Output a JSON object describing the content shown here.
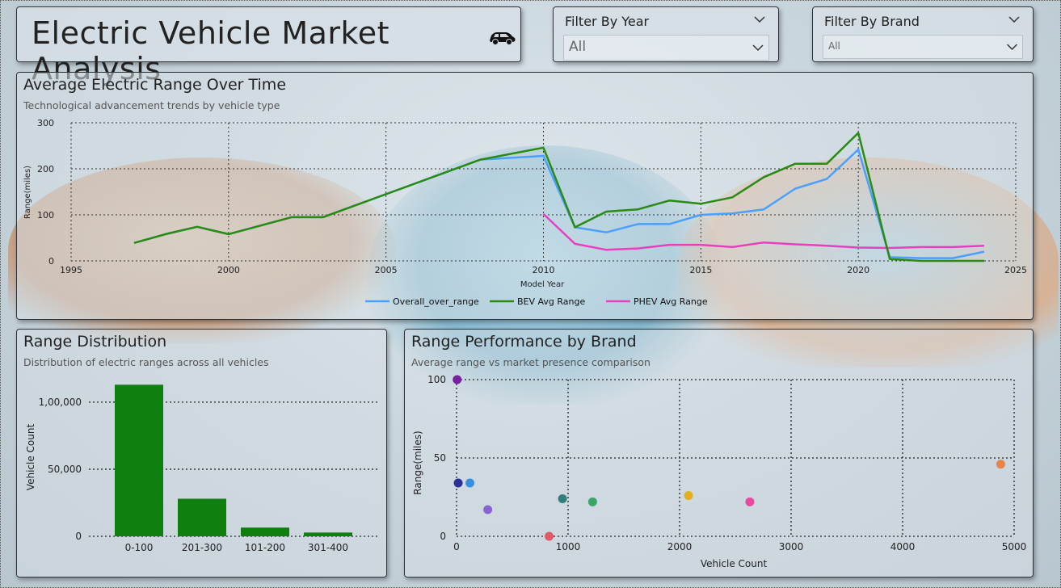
{
  "header": {
    "title": "Electric Vehicle Market Analysis",
    "icon": "car-icon"
  },
  "filters": {
    "year": {
      "label": "Filter By Year",
      "value": "All"
    },
    "brand": {
      "label": "Filter By Brand",
      "value": "All"
    }
  },
  "range_over_time": {
    "title": "Average Electric Range Over Time",
    "subtitle": "Technological advancement trends by vehicle type"
  },
  "range_distribution": {
    "title": "Range Distribution",
    "subtitle": "Distribution of electric ranges across all vehicles"
  },
  "brand_performance": {
    "title": "Range Performance by Brand",
    "subtitle": "Average range vs market presence comparison"
  },
  "colors": {
    "overall": "#4a9fff",
    "bev": "#2b8a12",
    "phev": "#e83fbf",
    "bar": "#0f7f0f"
  },
  "chart_data": [
    {
      "type": "line",
      "title": "Average Electric Range Over Time",
      "xlabel": "Model Year",
      "ylabel": "Range(miles)",
      "xlim": [
        1995,
        2025
      ],
      "ylim": [
        0,
        300
      ],
      "xticks": [
        1995,
        2000,
        2005,
        2010,
        2015,
        2020,
        2025
      ],
      "yticks": [
        0,
        100,
        200,
        300
      ],
      "legend": "bottom-center",
      "series": [
        {
          "name": "Overall_over_range",
          "x": [
            1997,
            1998,
            1999,
            2000,
            2002,
            2003,
            2008,
            2010,
            2011,
            2012,
            2013,
            2014,
            2015,
            2016,
            2017,
            2018,
            2019,
            2020,
            2021,
            2022,
            2023,
            2024
          ],
          "y": [
            39,
            58,
            74,
            58,
            95,
            95,
            220,
            228,
            73,
            62,
            80,
            80,
            100,
            103,
            112,
            157,
            178,
            242,
            8,
            6,
            6,
            20
          ]
        },
        {
          "name": "BEV Avg Range",
          "x": [
            1997,
            1998,
            1999,
            2000,
            2002,
            2003,
            2008,
            2010,
            2011,
            2012,
            2013,
            2014,
            2015,
            2016,
            2017,
            2018,
            2019,
            2020,
            2021,
            2022,
            2023,
            2024
          ],
          "y": [
            39,
            58,
            74,
            58,
            95,
            95,
            220,
            246,
            73,
            107,
            112,
            131,
            124,
            138,
            182,
            211,
            211,
            278,
            4,
            0,
            0,
            0
          ]
        },
        {
          "name": "PHEV Avg Range",
          "x": [
            2010,
            2011,
            2012,
            2013,
            2014,
            2015,
            2016,
            2017,
            2018,
            2019,
            2020,
            2021,
            2022,
            2023,
            2024
          ],
          "y": [
            102,
            37,
            24,
            27,
            35,
            35,
            30,
            40,
            36,
            33,
            29,
            28,
            30,
            30,
            33
          ]
        }
      ]
    },
    {
      "type": "bar",
      "title": "Range Distribution",
      "xlabel": "",
      "ylabel": "Vehicle Count",
      "categories": [
        "0-100",
        "201-300",
        "101-200",
        "301-400"
      ],
      "values": [
        113000,
        28000,
        6500,
        2800
      ],
      "yticks": [
        0,
        50000,
        100000
      ],
      "ytick_labels": [
        "0",
        "50,000",
        "1,00,000"
      ],
      "ylim": [
        0,
        118000
      ]
    },
    {
      "type": "scatter",
      "title": "Range Performance by Brand",
      "xlabel": "Vehicle Count",
      "ylabel": "Range(miles)",
      "xlim": [
        0,
        5000
      ],
      "ylim": [
        0,
        100
      ],
      "xticks": [
        0,
        1000,
        2000,
        3000,
        4000,
        5000
      ],
      "yticks": [
        0,
        50,
        100
      ],
      "points": [
        {
          "x": 5,
          "y": 100,
          "color": "#7b1fa2"
        },
        {
          "x": 15,
          "y": 34,
          "color": "#2e2e9a"
        },
        {
          "x": 120,
          "y": 34,
          "color": "#3a8ee0"
        },
        {
          "x": 280,
          "y": 17,
          "color": "#8a63d2"
        },
        {
          "x": 830,
          "y": 0,
          "color": "#e05a6a"
        },
        {
          "x": 950,
          "y": 24,
          "color": "#2f7f7f"
        },
        {
          "x": 1220,
          "y": 22,
          "color": "#3aa56a"
        },
        {
          "x": 2080,
          "y": 26,
          "color": "#e0b020"
        },
        {
          "x": 2630,
          "y": 22,
          "color": "#e84aa0"
        },
        {
          "x": 4880,
          "y": 46,
          "color": "#e8844a"
        }
      ]
    }
  ]
}
